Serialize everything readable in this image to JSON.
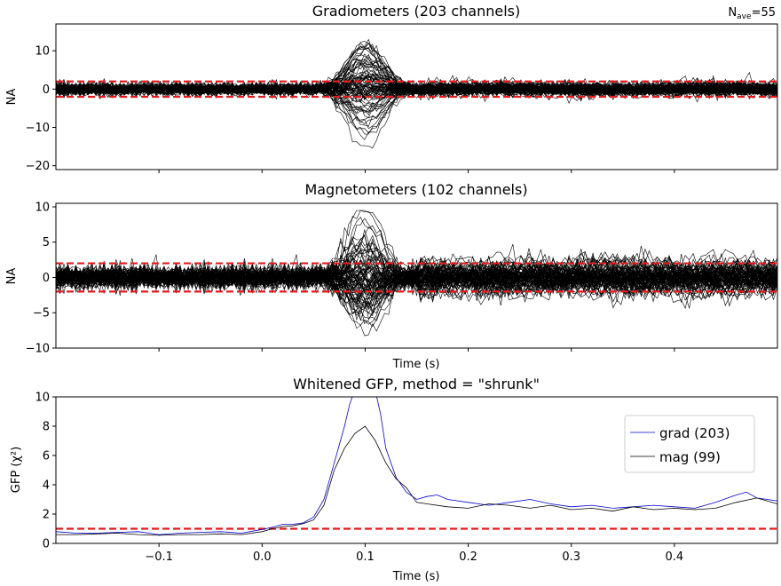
{
  "nave_text": "N",
  "nave_sub": "ave",
  "nave_value": "=55",
  "chart_data": [
    {
      "type": "line",
      "title": "Gradiometers (203 channels)",
      "ylabel": "NA",
      "xlabel": "",
      "xlim": [
        -0.2,
        0.5
      ],
      "ylim": [
        -21,
        17
      ],
      "yticks": [
        -20,
        -10,
        0,
        10
      ],
      "xticks": [
        -0.1,
        0.0,
        0.1,
        0.2,
        0.3,
        0.4
      ],
      "channel_count": 203,
      "peak_amplitude": 15,
      "trough_amplitude": -19.5,
      "peak_time": 0.1,
      "baseline_band": 2,
      "threshold_lines": [
        -2,
        2
      ],
      "line_color": "#000000",
      "threshold_color": "#e41a1c"
    },
    {
      "type": "line",
      "title": "Magnetometers (102 channels)",
      "ylabel": "NA",
      "xlabel": "Time (s)",
      "xlim": [
        -0.2,
        0.5
      ],
      "ylim": [
        -10,
        10.5
      ],
      "yticks": [
        -10,
        -5,
        0,
        5,
        10
      ],
      "xticks": [
        -0.1,
        0.0,
        0.1,
        0.2,
        0.3,
        0.4
      ],
      "channel_count": 102,
      "peak_amplitude": 9.5,
      "trough_amplitude": -9,
      "peak_time": 0.1,
      "baseline_band": 2,
      "threshold_lines": [
        -2,
        2
      ],
      "line_color": "#000000",
      "threshold_color": "#e41a1c"
    },
    {
      "type": "line",
      "title": "Whitened GFP, method = \"shrunk\"",
      "ylabel": "GFP (χ²)",
      "xlabel": "Time (s)",
      "xlim": [
        -0.2,
        0.5
      ],
      "ylim": [
        0,
        10
      ],
      "yticks": [
        0,
        2,
        4,
        6,
        8,
        10
      ],
      "xticks": [
        -0.1,
        0.0,
        0.1,
        0.2,
        0.3,
        0.4
      ],
      "xtick_labels": [
        "−0.1",
        "0.0",
        "0.1",
        "0.2",
        "0.3",
        "0.4"
      ],
      "threshold_lines": [
        1
      ],
      "threshold_color": "#e41a1c",
      "legend_position": "right",
      "series": [
        {
          "name": "grad (203)",
          "color": "#0000cc",
          "x": [
            -0.2,
            -0.18,
            -0.16,
            -0.14,
            -0.12,
            -0.1,
            -0.08,
            -0.06,
            -0.04,
            -0.02,
            0.0,
            0.01,
            0.02,
            0.03,
            0.04,
            0.05,
            0.06,
            0.07,
            0.08,
            0.085,
            0.09,
            0.095,
            0.1,
            0.105,
            0.11,
            0.115,
            0.12,
            0.13,
            0.14,
            0.15,
            0.16,
            0.17,
            0.18,
            0.2,
            0.22,
            0.24,
            0.26,
            0.28,
            0.3,
            0.32,
            0.34,
            0.36,
            0.38,
            0.4,
            0.42,
            0.44,
            0.46,
            0.47,
            0.48,
            0.5
          ],
          "y": [
            0.8,
            0.7,
            0.7,
            0.75,
            0.8,
            0.6,
            0.7,
            0.75,
            0.8,
            0.7,
            0.95,
            1.1,
            1.3,
            1.3,
            1.4,
            1.8,
            3.0,
            5.5,
            8.0,
            9.5,
            10.5,
            11.0,
            11.2,
            11.0,
            10.4,
            8.8,
            6.5,
            4.5,
            3.5,
            3.0,
            3.2,
            3.3,
            3.0,
            2.8,
            2.6,
            2.8,
            3.0,
            2.7,
            2.5,
            2.6,
            2.4,
            2.5,
            2.6,
            2.5,
            2.4,
            2.8,
            3.3,
            3.5,
            3.1,
            2.9
          ]
        },
        {
          "name": "mag (99)",
          "color": "#000000",
          "x": [
            -0.2,
            -0.18,
            -0.16,
            -0.14,
            -0.12,
            -0.1,
            -0.08,
            -0.06,
            -0.04,
            -0.02,
            0.0,
            0.01,
            0.02,
            0.03,
            0.04,
            0.05,
            0.06,
            0.07,
            0.08,
            0.09,
            0.1,
            0.11,
            0.12,
            0.13,
            0.14,
            0.15,
            0.16,
            0.18,
            0.2,
            0.22,
            0.24,
            0.26,
            0.28,
            0.3,
            0.32,
            0.34,
            0.36,
            0.38,
            0.4,
            0.42,
            0.44,
            0.46,
            0.48,
            0.5
          ],
          "y": [
            0.6,
            0.6,
            0.65,
            0.7,
            0.6,
            0.55,
            0.6,
            0.6,
            0.65,
            0.6,
            0.8,
            1.0,
            1.15,
            1.2,
            1.35,
            1.6,
            2.6,
            5.0,
            6.5,
            7.5,
            8.0,
            7.0,
            5.5,
            4.4,
            3.8,
            2.8,
            2.7,
            2.5,
            2.4,
            2.7,
            2.6,
            2.4,
            2.6,
            2.3,
            2.4,
            2.2,
            2.5,
            2.3,
            2.4,
            2.3,
            2.4,
            2.8,
            3.1,
            2.7
          ]
        }
      ]
    }
  ]
}
